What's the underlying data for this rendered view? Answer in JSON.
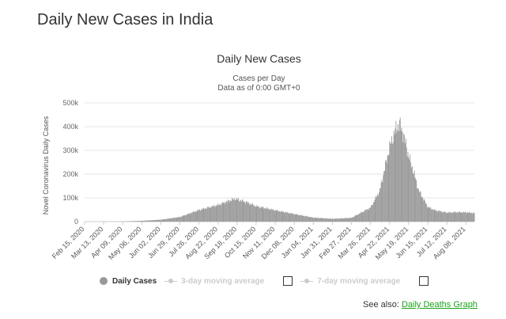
{
  "page": {
    "heading": "Daily New Cases in India"
  },
  "chart_data": {
    "type": "bar",
    "title": "Daily New Cases",
    "subtitle_lines": [
      "Cases per Day",
      "Data as of 0:00 GMT+0"
    ],
    "ylabel": "Novel Coronavirus Daily Cases",
    "xlabel": "",
    "ylim": [
      0,
      500000
    ],
    "y_ticks": [
      "0",
      "100k",
      "200k",
      "300k",
      "400k",
      "500k"
    ],
    "x_tick_labels": [
      "Feb 15, 2020",
      "Mar 13, 2020",
      "Apr 09, 2020",
      "May 06, 2020",
      "Jun 02, 2020",
      "Jun 29, 2020",
      "Jul 26, 2020",
      "Aug 22, 2020",
      "Sep 18, 2020",
      "Oct 15, 2020",
      "Nov 11, 2020",
      "Dec 08, 2020",
      "Jan 04, 2021",
      "Jan 31, 2021",
      "Feb 27, 2021",
      "Mar 26, 2021",
      "Apr 22, 2021",
      "May 19, 2021",
      "Jun 15, 2021",
      "Jul 12, 2021",
      "Aug 08, 2021"
    ],
    "x_range": [
      "Feb 15, 2020",
      "Aug 20, 2021"
    ],
    "grid": true,
    "series": [
      {
        "name": "Daily Cases",
        "color": "#999999",
        "points": [
          [
            "Feb 15, 2020",
            0
          ],
          [
            "Mar 13, 2020",
            10
          ],
          [
            "Apr 09, 2020",
            600
          ],
          [
            "May 06, 2020",
            3500
          ],
          [
            "Jun 02, 2020",
            8200
          ],
          [
            "Jun 29, 2020",
            19500
          ],
          [
            "Jul 26, 2020",
            49000
          ],
          [
            "Aug 22, 2020",
            70000
          ],
          [
            "Sep 05, 2020",
            86000
          ],
          [
            "Sep 16, 2020",
            97000
          ],
          [
            "Sep 18, 2020",
            94000
          ],
          [
            "Oct 01, 2020",
            82000
          ],
          [
            "Oct 15, 2020",
            65000
          ],
          [
            "Nov 11, 2020",
            48000
          ],
          [
            "Dec 08, 2020",
            32000
          ],
          [
            "Jan 04, 2021",
            17000
          ],
          [
            "Jan 31, 2021",
            12000
          ],
          [
            "Feb 27, 2021",
            16000
          ],
          [
            "Mar 26, 2021",
            59000
          ],
          [
            "Apr 08, 2021",
            131000
          ],
          [
            "Apr 22, 2021",
            315000
          ],
          [
            "May 01, 2021",
            392000
          ],
          [
            "May 06, 2021",
            414000
          ],
          [
            "May 12, 2021",
            362000
          ],
          [
            "May 19, 2021",
            276000
          ],
          [
            "May 26, 2021",
            209000
          ],
          [
            "Jun 02, 2021",
            133000
          ],
          [
            "Jun 15, 2021",
            62000
          ],
          [
            "Jun 25, 2021",
            48000
          ],
          [
            "Jul 12, 2021",
            38000
          ],
          [
            "Jul 26, 2021",
            40000
          ],
          [
            "Aug 08, 2021",
            39000
          ],
          [
            "Aug 20, 2021",
            36000
          ]
        ]
      },
      {
        "name": "3-day moving average",
        "visible": false
      },
      {
        "name": "7-day moving average",
        "visible": false
      }
    ],
    "legend_placement": "bottom"
  },
  "legend": {
    "daily": "Daily Cases",
    "avg3": "3-day moving average",
    "avg7": "7-day moving average"
  },
  "footer": {
    "see_also_label": "See also:",
    "see_also_link": "Daily Deaths Graph"
  }
}
